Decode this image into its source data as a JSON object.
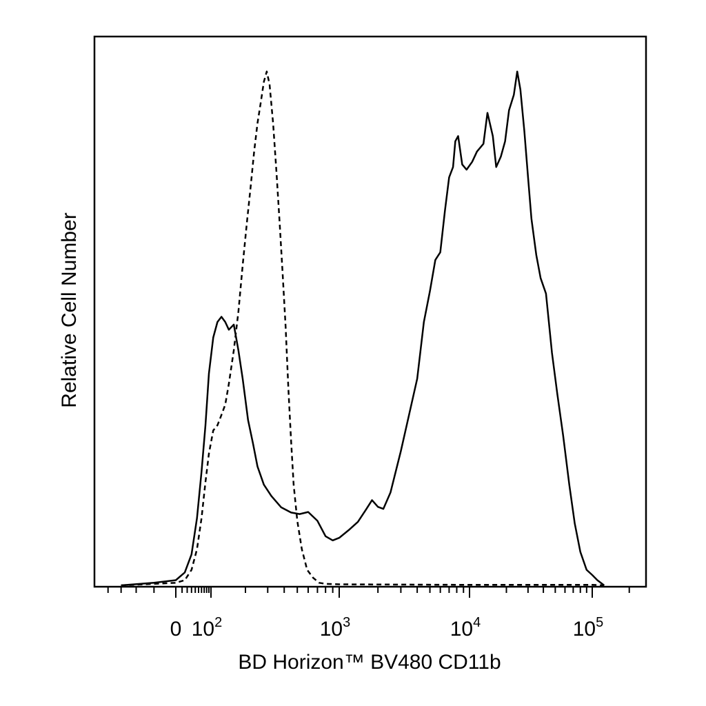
{
  "chart_data": {
    "type": "line",
    "xlabel": "BD Horizon™ BV480 CD11b",
    "ylabel": "Relative Cell Number",
    "x_scale": "biexponential",
    "x_ticks": [
      {
        "value": 0,
        "label": "0"
      },
      {
        "value": 100,
        "base": "10",
        "exp": "2"
      },
      {
        "value": 1000,
        "base": "10",
        "exp": "3"
      },
      {
        "value": 10000,
        "base": "10",
        "exp": "4"
      },
      {
        "value": 100000,
        "base": "10",
        "exp": "5"
      }
    ],
    "x_range": [
      -50,
      250000
    ],
    "y_range": [
      0,
      100
    ],
    "grid": false,
    "series": [
      {
        "style": "solid",
        "color": "#000000",
        "points": [
          [
            -30,
            0
          ],
          [
            -10,
            0.5
          ],
          [
            0,
            1
          ],
          [
            15,
            2.5
          ],
          [
            30,
            6
          ],
          [
            45,
            13
          ],
          [
            60,
            22
          ],
          [
            75,
            31
          ],
          [
            90,
            41
          ],
          [
            105,
            48
          ],
          [
            115,
            51
          ],
          [
            125,
            52
          ],
          [
            135,
            51
          ],
          [
            145,
            49.5
          ],
          [
            160,
            50.5
          ],
          [
            175,
            45.5
          ],
          [
            190,
            40
          ],
          [
            210,
            32
          ],
          [
            230,
            27.5
          ],
          [
            250,
            23
          ],
          [
            280,
            19.5
          ],
          [
            320,
            17.3
          ],
          [
            380,
            15.1
          ],
          [
            450,
            14.1
          ],
          [
            520,
            13.8
          ],
          [
            600,
            14.2
          ],
          [
            700,
            12.5
          ],
          [
            800,
            9.5
          ],
          [
            900,
            8.7
          ],
          [
            1000,
            9.2
          ],
          [
            1200,
            10.8
          ],
          [
            1400,
            12.3
          ],
          [
            1600,
            14.5
          ],
          [
            1800,
            16.5
          ],
          [
            2000,
            15.2
          ],
          [
            2200,
            14.8
          ],
          [
            2500,
            18
          ],
          [
            3000,
            26
          ],
          [
            3500,
            33.5
          ],
          [
            4000,
            40
          ],
          [
            4500,
            51
          ],
          [
            5000,
            57
          ],
          [
            5500,
            63
          ],
          [
            6000,
            64.5
          ],
          [
            6500,
            72.5
          ],
          [
            7000,
            79
          ],
          [
            7500,
            81
          ],
          [
            7800,
            86
          ],
          [
            8200,
            87
          ],
          [
            8800,
            81.5
          ],
          [
            9500,
            80.5
          ],
          [
            10500,
            82
          ],
          [
            11500,
            84
          ],
          [
            13000,
            85.5
          ],
          [
            14000,
            91.5
          ],
          [
            15500,
            87
          ],
          [
            16500,
            81
          ],
          [
            18000,
            83
          ],
          [
            19500,
            86
          ],
          [
            21000,
            92
          ],
          [
            23000,
            95
          ],
          [
            24500,
            99.5
          ],
          [
            26000,
            96
          ],
          [
            28000,
            88
          ],
          [
            30000,
            79
          ],
          [
            32000,
            71
          ],
          [
            35000,
            64
          ],
          [
            38000,
            59.5
          ],
          [
            42000,
            56.5
          ],
          [
            47000,
            45
          ],
          [
            52000,
            37
          ],
          [
            58000,
            29
          ],
          [
            65000,
            19.5
          ],
          [
            72000,
            12
          ],
          [
            80000,
            6.5
          ],
          [
            90000,
            3
          ],
          [
            100000,
            2
          ],
          [
            110000,
            1
          ],
          [
            125000,
            0
          ]
        ]
      },
      {
        "style": "dashed",
        "color": "#000000",
        "points": [
          [
            -30,
            0
          ],
          [
            -10,
            0.3
          ],
          [
            0,
            0.5
          ],
          [
            15,
            1
          ],
          [
            30,
            3
          ],
          [
            45,
            7
          ],
          [
            60,
            13
          ],
          [
            75,
            20
          ],
          [
            90,
            25.5
          ],
          [
            105,
            30
          ],
          [
            115,
            31
          ],
          [
            125,
            33
          ],
          [
            135,
            35
          ],
          [
            145,
            39
          ],
          [
            160,
            45.5
          ],
          [
            175,
            53
          ],
          [
            190,
            62
          ],
          [
            205,
            70
          ],
          [
            220,
            77
          ],
          [
            235,
            84
          ],
          [
            250,
            89.5
          ],
          [
            265,
            93.5
          ],
          [
            280,
            97.5
          ],
          [
            295,
            99.5
          ],
          [
            310,
            97
          ],
          [
            330,
            89.5
          ],
          [
            350,
            80
          ],
          [
            370,
            70
          ],
          [
            390,
            60
          ],
          [
            410,
            50
          ],
          [
            430,
            38
          ],
          [
            450,
            28
          ],
          [
            470,
            19.5
          ],
          [
            500,
            12.5
          ],
          [
            540,
            7
          ],
          [
            590,
            3
          ],
          [
            650,
            1.5
          ],
          [
            720,
            0.5
          ],
          [
            800,
            0.3
          ],
          [
            1000,
            0.2
          ],
          [
            10000,
            0.1
          ],
          [
            100000,
            0.1
          ],
          [
            125000,
            0
          ]
        ]
      }
    ]
  }
}
